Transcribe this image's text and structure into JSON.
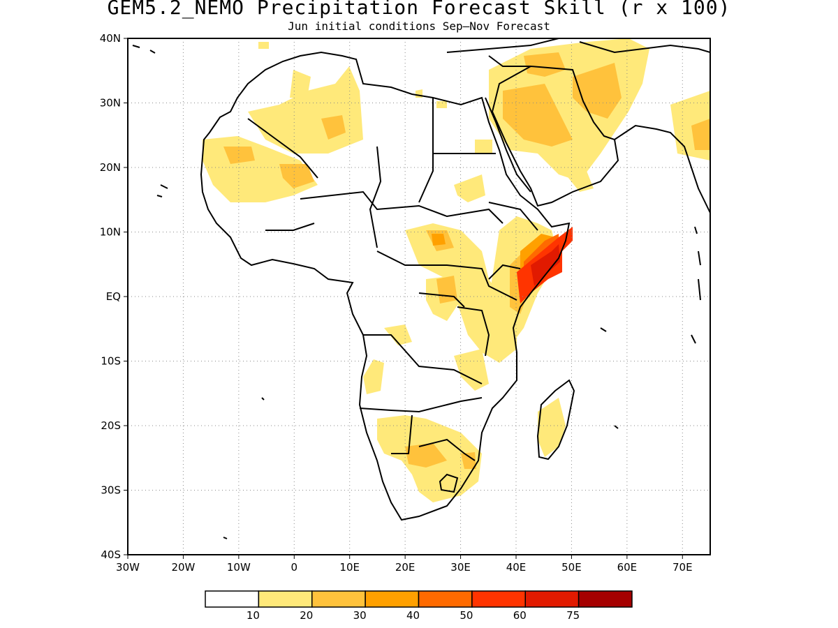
{
  "title": "GEM5.2_NEMO Precipitation Forecast Skill (r x 100)",
  "subtitle": "Jun initial conditions  Sep–Nov Forecast",
  "map": {
    "lat_labels": [
      "40N",
      "30N",
      "20N",
      "10N",
      "EQ",
      "10S",
      "20S",
      "30S",
      "40S"
    ],
    "lon_labels": [
      "30W",
      "20W",
      "10W",
      "0",
      "10E",
      "20E",
      "30E",
      "40E",
      "50E",
      "60E",
      "70E"
    ],
    "lon_range": [
      -30,
      75
    ],
    "lat_range": [
      -40,
      40
    ],
    "grid": "dotted"
  },
  "colorbar": {
    "labels": [
      "10",
      "20",
      "30",
      "40",
      "50",
      "60",
      "75"
    ],
    "colors": [
      "#ffffff",
      "#ffe97a",
      "#ffc23c",
      "#ffa000",
      "#ff6a00",
      "#ff3400",
      "#e11a00",
      "#a50000"
    ]
  }
}
